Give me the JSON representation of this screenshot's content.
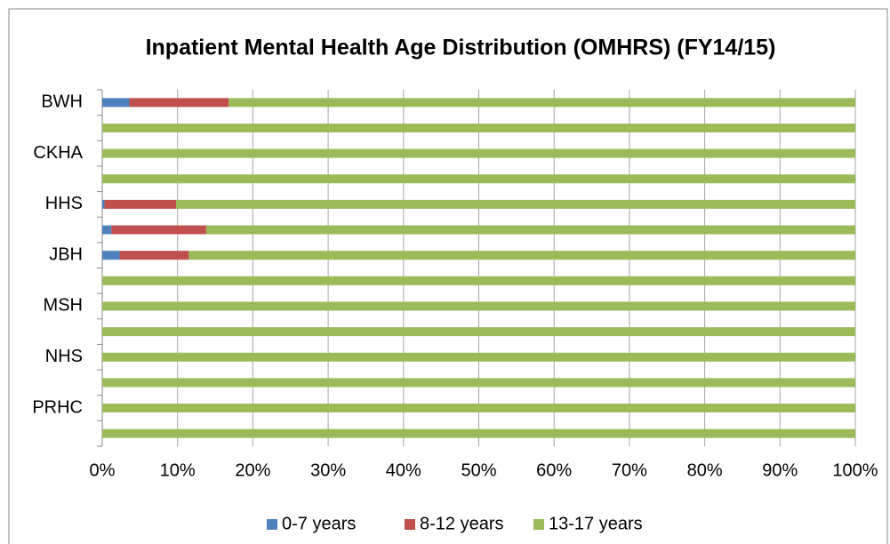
{
  "chart_data": {
    "type": "stacked_barh",
    "title": "Inpatient Mental Health Age Distribution (OMHRS) (FY14/15)",
    "categories": [
      "BWH",
      null,
      "CKHA",
      null,
      "HHS",
      null,
      "JBH",
      null,
      "MSH",
      null,
      "NHS",
      null,
      "PRHC",
      null
    ],
    "series": [
      {
        "name": "0-7 years",
        "color": "#4f81bd",
        "values": [
          3.6,
          0,
          0,
          0,
          0.3,
          1.2,
          2.3,
          0,
          0,
          0,
          0,
          0,
          0,
          0
        ]
      },
      {
        "name": "8-12 years",
        "color": "#c0504d",
        "values": [
          13.2,
          0,
          0,
          0,
          9.5,
          12.6,
          9.2,
          0,
          0,
          0,
          0,
          0,
          0,
          0
        ]
      },
      {
        "name": "13-17 years",
        "color": "#9bbb59",
        "values": [
          83.2,
          100,
          100,
          100,
          90.2,
          86.2,
          88.5,
          100,
          100,
          100,
          100,
          100,
          100,
          100
        ]
      }
    ],
    "xlim": [
      0,
      100
    ],
    "xticks": [
      {
        "value": 0,
        "label": "0%"
      },
      {
        "value": 10,
        "label": "10%"
      },
      {
        "value": 20,
        "label": "20%"
      },
      {
        "value": 30,
        "label": "30%"
      },
      {
        "value": 40,
        "label": "40%"
      },
      {
        "value": 50,
        "label": "50%"
      },
      {
        "value": 60,
        "label": "60%"
      },
      {
        "value": 70,
        "label": "70%"
      },
      {
        "value": 80,
        "label": "80%"
      },
      {
        "value": 90,
        "label": "90%"
      },
      {
        "value": 100,
        "label": "100%"
      }
    ],
    "grid": true,
    "legend": "bottom"
  }
}
